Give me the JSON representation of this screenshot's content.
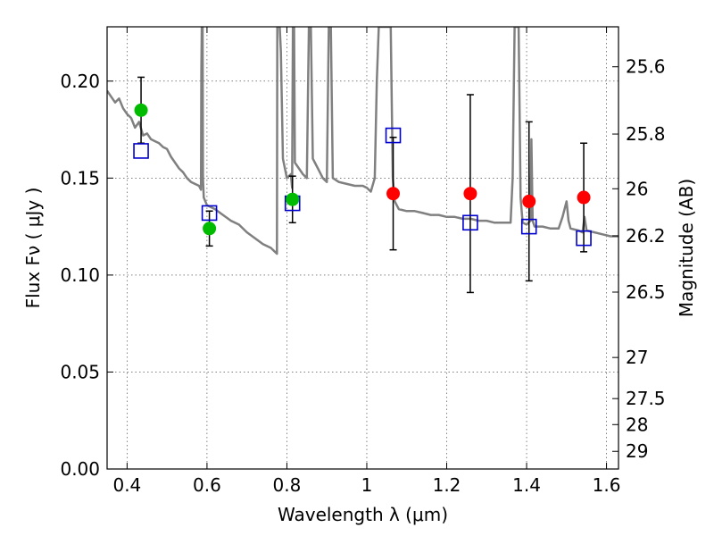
{
  "chart_data": {
    "type": "scatter",
    "xlabel": "Wavelength  λ (μm)",
    "ylabel": "Flux  Fν  ( μJy )",
    "y2label": "Magnitude (AB)",
    "xlim": [
      0.35,
      1.63
    ],
    "ylim": [
      0.0,
      0.228
    ],
    "grid": true,
    "x_ticks": [
      0.4,
      0.6,
      0.8,
      1.0,
      1.2,
      1.4,
      1.6
    ],
    "x_tick_labels": [
      "0.4",
      "0.6",
      "0.8",
      "1",
      "1.2",
      "1.4",
      "1.6"
    ],
    "y_ticks": [
      0.0,
      0.05,
      0.1,
      0.15,
      0.2
    ],
    "y_tick_labels": [
      "0.00",
      "0.05",
      "0.10",
      "0.15",
      "0.20"
    ],
    "y2_ticks": [
      {
        "flux": 0.2074,
        "label": "25.6"
      },
      {
        "flux": 0.1727,
        "label": "25.8"
      },
      {
        "flux": 0.1445,
        "label": "26"
      },
      {
        "flux": 0.1202,
        "label": "26.2"
      },
      {
        "flux": 0.0912,
        "label": "26.5"
      },
      {
        "flux": 0.0575,
        "label": "27"
      },
      {
        "flux": 0.0363,
        "label": "27.5"
      },
      {
        "flux": 0.0229,
        "label": "28"
      },
      {
        "flux": 0.0091,
        "label": "29"
      }
    ],
    "colors": {
      "model": "#808080",
      "green": "#00bb00",
      "red": "#ff0000",
      "model_squares": "#0000cc",
      "errorbar": "#000000"
    },
    "series": [
      {
        "values": [
          [
            0.435,
            0.185,
            0.017
          ],
          [
            0.606,
            0.124,
            0.009
          ],
          [
            0.814,
            0.139,
            0.012
          ]
        ]
      },
      {
        "values": [
          [
            1.066,
            0.142,
            0.029
          ],
          [
            1.259,
            0.142,
            0.051
          ],
          [
            1.406,
            0.138,
            0.041
          ],
          [
            1.543,
            0.14,
            0.028
          ]
        ]
      },
      {
        "values": [
          [
            0.435,
            0.164
          ],
          [
            0.606,
            0.132
          ],
          [
            0.814,
            0.137
          ],
          [
            1.066,
            0.172
          ],
          [
            1.259,
            0.127
          ],
          [
            1.406,
            0.125
          ],
          [
            1.543,
            0.119
          ]
        ]
      },
      {
        "points": [
          [
            0.35,
            0.195
          ],
          [
            0.36,
            0.192
          ],
          [
            0.37,
            0.189
          ],
          [
            0.38,
            0.191
          ],
          [
            0.39,
            0.186
          ],
          [
            0.4,
            0.183
          ],
          [
            0.41,
            0.181
          ],
          [
            0.42,
            0.176
          ],
          [
            0.43,
            0.179
          ],
          [
            0.44,
            0.172
          ],
          [
            0.45,
            0.173
          ],
          [
            0.46,
            0.17
          ],
          [
            0.47,
            0.169
          ],
          [
            0.48,
            0.168
          ],
          [
            0.49,
            0.166
          ],
          [
            0.5,
            0.165
          ],
          [
            0.51,
            0.161
          ],
          [
            0.52,
            0.158
          ],
          [
            0.53,
            0.155
          ],
          [
            0.54,
            0.153
          ],
          [
            0.55,
            0.15
          ],
          [
            0.56,
            0.148
          ],
          [
            0.57,
            0.147
          ],
          [
            0.58,
            0.146
          ],
          [
            0.585,
            0.144
          ],
          [
            0.586,
            0.205
          ],
          [
            0.587,
            0.228
          ],
          [
            0.589,
            0.228
          ],
          [
            0.59,
            0.15
          ],
          [
            0.592,
            0.14
          ],
          [
            0.6,
            0.136
          ],
          [
            0.62,
            0.134
          ],
          [
            0.64,
            0.131
          ],
          [
            0.66,
            0.128
          ],
          [
            0.68,
            0.126
          ],
          [
            0.7,
            0.122
          ],
          [
            0.72,
            0.119
          ],
          [
            0.74,
            0.116
          ],
          [
            0.76,
            0.114
          ],
          [
            0.77,
            0.112
          ],
          [
            0.775,
            0.111
          ],
          [
            0.776,
            0.228
          ],
          [
            0.782,
            0.228
          ],
          [
            0.785,
            0.215
          ],
          [
            0.79,
            0.16
          ],
          [
            0.8,
            0.15
          ],
          [
            0.81,
            0.152
          ],
          [
            0.813,
            0.145
          ],
          [
            0.815,
            0.228
          ],
          [
            0.818,
            0.228
          ],
          [
            0.82,
            0.158
          ],
          [
            0.83,
            0.155
          ],
          [
            0.84,
            0.152
          ],
          [
            0.85,
            0.15
          ],
          [
            0.855,
            0.228
          ],
          [
            0.86,
            0.228
          ],
          [
            0.865,
            0.16
          ],
          [
            0.87,
            0.158
          ],
          [
            0.88,
            0.154
          ],
          [
            0.89,
            0.15
          ],
          [
            0.9,
            0.148
          ],
          [
            0.905,
            0.228
          ],
          [
            0.91,
            0.228
          ],
          [
            0.915,
            0.15
          ],
          [
            0.93,
            0.148
          ],
          [
            0.95,
            0.147
          ],
          [
            0.97,
            0.146
          ],
          [
            0.99,
            0.146
          ],
          [
            1.0,
            0.145
          ],
          [
            1.01,
            0.143
          ],
          [
            1.02,
            0.15
          ],
          [
            1.025,
            0.2
          ],
          [
            1.03,
            0.228
          ],
          [
            1.06,
            0.228
          ],
          [
            1.065,
            0.15
          ],
          [
            1.07,
            0.138
          ],
          [
            1.08,
            0.134
          ],
          [
            1.1,
            0.133
          ],
          [
            1.12,
            0.133
          ],
          [
            1.14,
            0.132
          ],
          [
            1.16,
            0.131
          ],
          [
            1.18,
            0.131
          ],
          [
            1.2,
            0.13
          ],
          [
            1.22,
            0.13
          ],
          [
            1.24,
            0.129
          ],
          [
            1.26,
            0.129
          ],
          [
            1.28,
            0.128
          ],
          [
            1.3,
            0.128
          ],
          [
            1.32,
            0.127
          ],
          [
            1.34,
            0.127
          ],
          [
            1.36,
            0.127
          ],
          [
            1.365,
            0.15
          ],
          [
            1.37,
            0.228
          ],
          [
            1.38,
            0.228
          ],
          [
            1.385,
            0.14
          ],
          [
            1.39,
            0.127
          ],
          [
            1.4,
            0.126
          ],
          [
            1.41,
            0.128
          ],
          [
            1.412,
            0.17
          ],
          [
            1.415,
            0.128
          ],
          [
            1.42,
            0.125
          ],
          [
            1.44,
            0.125
          ],
          [
            1.46,
            0.124
          ],
          [
            1.48,
            0.124
          ],
          [
            1.49,
            0.13
          ],
          [
            1.5,
            0.138
          ],
          [
            1.505,
            0.128
          ],
          [
            1.51,
            0.124
          ],
          [
            1.53,
            0.123
          ],
          [
            1.54,
            0.122
          ],
          [
            1.545,
            0.13
          ],
          [
            1.55,
            0.123
          ],
          [
            1.57,
            0.122
          ],
          [
            1.59,
            0.121
          ],
          [
            1.61,
            0.12
          ],
          [
            1.63,
            0.12
          ]
        ]
      }
    ]
  }
}
